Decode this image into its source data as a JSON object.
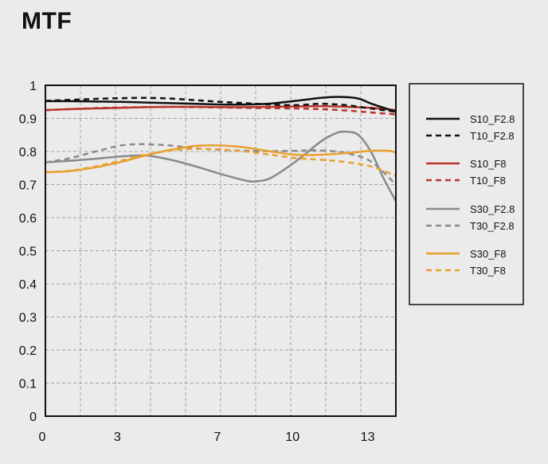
{
  "title": "MTF",
  "chart_data": {
    "type": "line",
    "title": "MTF",
    "xlabel": "",
    "ylabel": "",
    "xlim": [
      0,
      14
    ],
    "ylim": [
      0,
      1
    ],
    "x_ticks": [
      0,
      3,
      7,
      10,
      13
    ],
    "x_tick_labels": [
      "0",
      "3",
      "7",
      "10",
      "13"
    ],
    "x_grid": [
      1.4,
      2.8,
      4.2,
      5.6,
      7,
      8.4,
      9.8,
      11.2,
      12.6
    ],
    "y_ticks": [
      0,
      0.1,
      0.2,
      0.3,
      0.4,
      0.5,
      0.6,
      0.7,
      0.8,
      0.9,
      1
    ],
    "y_tick_labels": [
      "0",
      "0.1",
      "0.2",
      "0.3",
      "0.4",
      "0.5",
      "0.6",
      "0.7",
      "0.8",
      "0.9",
      "1"
    ],
    "grid": true,
    "legend_position": "right",
    "series": [
      {
        "name": "S10_F2.8",
        "color": "#111111",
        "dash": "solid",
        "x": [
          0,
          1,
          2,
          3,
          4,
          5,
          6,
          7,
          8,
          9,
          10,
          11,
          11.7,
          12.5,
          13,
          14
        ],
        "y": [
          0.952,
          0.952,
          0.951,
          0.95,
          0.948,
          0.946,
          0.944,
          0.942,
          0.942,
          0.945,
          0.953,
          0.962,
          0.965,
          0.96,
          0.945,
          0.92
        ]
      },
      {
        "name": "T10_F2.8",
        "color": "#111111",
        "dash": "dashed",
        "x": [
          0,
          1,
          2,
          3,
          4,
          5,
          6,
          7,
          8,
          9,
          10,
          11,
          12,
          13,
          14
        ],
        "y": [
          0.953,
          0.956,
          0.959,
          0.961,
          0.962,
          0.96,
          0.955,
          0.95,
          0.946,
          0.942,
          0.94,
          0.944,
          0.94,
          0.93,
          0.92
        ]
      },
      {
        "name": "S10_F8",
        "color": "#b8342c",
        "dash": "solid",
        "x": [
          0,
          1,
          2,
          3,
          4,
          5,
          6,
          7,
          8,
          9,
          10,
          11,
          12,
          13,
          14
        ],
        "y": [
          0.925,
          0.928,
          0.93,
          0.932,
          0.934,
          0.935,
          0.935,
          0.934,
          0.934,
          0.935,
          0.936,
          0.937,
          0.935,
          0.932,
          0.925
        ]
      },
      {
        "name": "T10_F8",
        "color": "#b8342c",
        "dash": "dashed",
        "x": [
          0,
          1,
          2,
          3,
          4,
          5,
          6,
          7,
          8,
          9,
          10,
          11,
          12,
          13,
          14
        ],
        "y": [
          0.925,
          0.928,
          0.931,
          0.933,
          0.934,
          0.935,
          0.934,
          0.933,
          0.932,
          0.931,
          0.93,
          0.928,
          0.924,
          0.918,
          0.912
        ]
      },
      {
        "name": "S30_F2.8",
        "color": "#8a8a8a",
        "dash": "solid",
        "x": [
          0,
          1,
          2,
          3,
          4,
          5,
          6,
          7,
          8,
          8.4,
          9,
          10,
          11,
          11.6,
          12,
          12.5,
          13,
          13.5,
          14
        ],
        "y": [
          0.767,
          0.772,
          0.778,
          0.785,
          0.788,
          0.775,
          0.755,
          0.732,
          0.712,
          0.71,
          0.72,
          0.77,
          0.83,
          0.855,
          0.86,
          0.85,
          0.8,
          0.72,
          0.65
        ]
      },
      {
        "name": "T30_F2.8",
        "color": "#8a8a8a",
        "dash": "dashed",
        "x": [
          0,
          1,
          2,
          3,
          3.7,
          4,
          5,
          6,
          7,
          8,
          9,
          10,
          11,
          12,
          13,
          14
        ],
        "y": [
          0.767,
          0.78,
          0.8,
          0.818,
          0.822,
          0.822,
          0.818,
          0.81,
          0.805,
          0.802,
          0.801,
          0.802,
          0.803,
          0.795,
          0.77,
          0.7
        ]
      },
      {
        "name": "S30_F8",
        "color": "#e8a030",
        "dash": "solid",
        "x": [
          0,
          1,
          2,
          3,
          4,
          5,
          6,
          7,
          8,
          9,
          10,
          11,
          12,
          13,
          13.7,
          14
        ],
        "y": [
          0.737,
          0.741,
          0.752,
          0.768,
          0.788,
          0.805,
          0.817,
          0.818,
          0.812,
          0.8,
          0.79,
          0.79,
          0.795,
          0.802,
          0.802,
          0.797
        ]
      },
      {
        "name": "T30_F8",
        "color": "#e8a030",
        "dash": "dashed",
        "x": [
          0,
          1,
          2,
          3,
          4,
          5,
          6,
          7,
          8,
          9,
          10,
          11,
          12,
          13,
          14
        ],
        "y": [
          0.737,
          0.742,
          0.755,
          0.772,
          0.79,
          0.803,
          0.808,
          0.806,
          0.8,
          0.79,
          0.78,
          0.775,
          0.768,
          0.755,
          0.727
        ]
      }
    ]
  }
}
